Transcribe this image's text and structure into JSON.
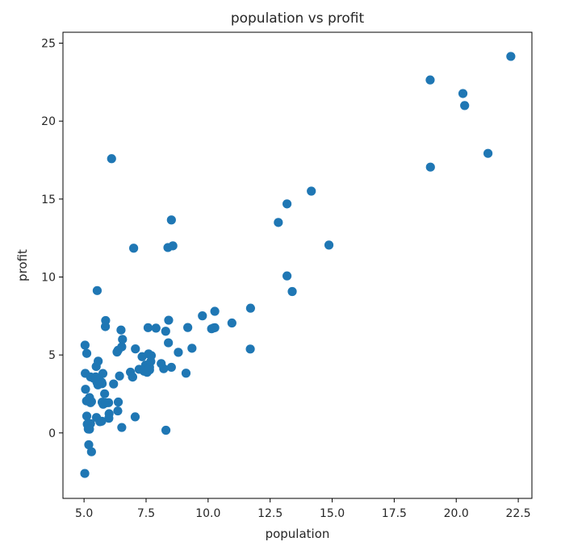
{
  "chart_data": {
    "type": "scatter",
    "title": "population vs profit",
    "xlabel": "population",
    "ylabel": "profit",
    "xlim": [
      4.15,
      23.05
    ],
    "ylim": [
      -4.2,
      25.7
    ],
    "xticks": [
      5.0,
      7.5,
      10.0,
      12.5,
      15.0,
      17.5,
      20.0,
      22.5
    ],
    "xtick_labels": [
      "5.0",
      "7.5",
      "10.0",
      "12.5",
      "15.0",
      "17.5",
      "20.0",
      "22.5"
    ],
    "yticks": [
      0,
      5,
      10,
      15,
      20,
      25
    ],
    "ytick_labels": [
      "0",
      "5",
      "10",
      "15",
      "20",
      "25"
    ],
    "grid": false,
    "marker_color": "#1f77b4",
    "series": [
      {
        "x": [
          6.11,
          5.53,
          8.52,
          7.0,
          5.86,
          8.38,
          7.48,
          8.58,
          6.49,
          5.05,
          5.71,
          14.16,
          5.73,
          8.41,
          5.64,
          5.38,
          6.37,
          5.13,
          6.43,
          7.07,
          6.19,
          20.27,
          5.49,
          6.33,
          5.56,
          18.95,
          12.83,
          10.96,
          13.18,
          22.2,
          5.26,
          6.52,
          7.71,
          5.1,
          10.22,
          5.5,
          20.34,
          10.14,
          7.34,
          6.01,
          7.22,
          5.03,
          6.55,
          7.54,
          5.04,
          10.27,
          5.11,
          5.73,
          5.19,
          6.36,
          9.77,
          6.52,
          8.52,
          9.18,
          6.0,
          5.52,
          5.06,
          5.71,
          7.64,
          5.87,
          5.17,
          10.27,
          5.76,
          5.22,
          7.9,
          5.3,
          7.42,
          7.58,
          7.64,
          5.11,
          8.8,
          8.21,
          6.87,
          13.39,
          13.18,
          5.26,
          7.06,
          8.3,
          7.69,
          6.96,
          5.62,
          5.47,
          5.77,
          6.38,
          5.26,
          11.71,
          5.3,
          6.95,
          5.83,
          5.99,
          8.11,
          8.29,
          9.11,
          7.6,
          11.7,
          14.87,
          5.88,
          5.22,
          5.57,
          8.4,
          9.35,
          21.28,
          18.96
        ],
        "y": [
          17.59,
          9.13,
          13.66,
          11.85,
          6.82,
          11.89,
          4.35,
          12.0,
          6.6,
          3.82,
          3.25,
          15.51,
          3.16,
          7.23,
          0.72,
          3.51,
          5.3,
          0.56,
          3.65,
          5.39,
          3.14,
          21.77,
          4.26,
          5.19,
          3.08,
          22.64,
          13.5,
          7.05,
          14.69,
          24.15,
          0.59,
          5.52,
          4.96,
          2.05,
          6.73,
          0.99,
          21.0,
          6.68,
          4.89,
          1.23,
          4.08,
          -2.6,
          6.0,
          3.89,
          5.63,
          7.8,
          1.08,
          1.97,
          -0.76,
          1.41,
          7.51,
          0.35,
          4.21,
          6.76,
          0.94,
          3.25,
          2.8,
          0.75,
          4.04,
          7.21,
          0.25,
          6.75,
          3.81,
          0.24,
          6.72,
          -1.21,
          3.96,
          6.75,
          4.21,
          5.1,
          5.17,
          4.12,
          3.9,
          9.07,
          10.07,
          3.59,
          1.03,
          0.17,
          4.58,
          3.58,
          3.36,
          3.59,
          1.84,
          1.98,
          1.94,
          8.0,
          2.01,
          3.6,
          2.51,
          1.94,
          4.45,
          6.52,
          3.83,
          5.07,
          5.38,
          12.05,
          1.93,
          2.27,
          4.6,
          5.78,
          5.43,
          17.93,
          17.05
        ]
      }
    ]
  }
}
